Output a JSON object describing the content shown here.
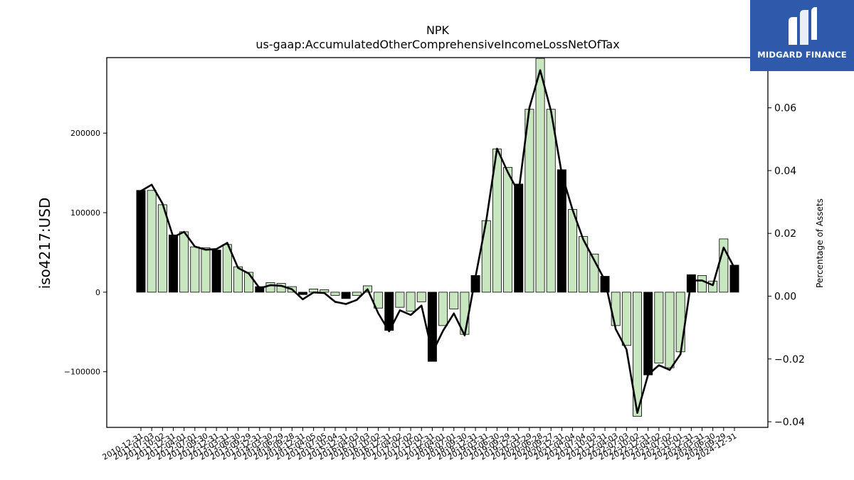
{
  "chart_data": {
    "type": "bar",
    "title": "NPK",
    "subtitle": "us-gaap:AccumulatedOtherComprehensiveIncomeLossNetOfTax",
    "ylabel": "iso4217:USD",
    "y2label": "Percentage of Assets",
    "ylim": [
      -170000,
      295000
    ],
    "y2lim": [
      -0.0418,
      0.076
    ],
    "yticks": [
      -100000,
      0,
      100000,
      200000
    ],
    "ytick_labels": [
      "−100000",
      "0",
      "100000",
      "200000"
    ],
    "y2ticks": [
      -0.04,
      -0.02,
      0.0,
      0.02,
      0.04,
      0.06
    ],
    "y2tick_labels": [
      "−0.04",
      "−0.02",
      "0.00",
      "0.02",
      "0.04",
      "0.06"
    ],
    "categories": [
      "2010-12-31",
      "2011-07-03",
      "2011-10-02",
      "2011-12-31",
      "2012-04-01",
      "2012-07-01",
      "2012-09-30",
      "2012-12-31",
      "2013-03-31",
      "2013-06-30",
      "2013-09-29",
      "2013-12-31",
      "2014-03-30",
      "2014-06-29",
      "2014-09-28",
      "2014-12-31",
      "2015-04-05",
      "2015-07-05",
      "2015-10-04",
      "2015-12-31",
      "2016-04-03",
      "2016-07-03",
      "2016-10-02",
      "2016-12-31",
      "2017-04-02",
      "2017-07-02",
      "2017-10-01",
      "2017-12-31",
      "2018-04-01",
      "2018-07-01",
      "2018-09-30",
      "2018-12-31",
      "2019-03-31",
      "2019-06-30",
      "2019-09-29",
      "2019-12-31",
      "2020-03-29",
      "2020-06-28",
      "2020-09-27",
      "2020-12-31",
      "2021-04-04",
      "2021-07-04",
      "2021-10-03",
      "2021-12-31",
      "2022-04-03",
      "2022-07-03",
      "2022-10-02",
      "2022-12-31",
      "2023-04-02",
      "2023-07-02",
      "2023-10-01",
      "2023-12-31",
      "2024-03-31",
      "2024-06-30",
      "2024-09-29",
      "2024-12-31"
    ],
    "values": [
      128000,
      128000,
      110000,
      72000,
      76000,
      57000,
      56000,
      53000,
      60000,
      32000,
      25000,
      7000,
      12000,
      11000,
      7000,
      -3000,
      4000,
      3000,
      -4000,
      -8000,
      -4000,
      8000,
      -20000,
      -48000,
      -19000,
      -24000,
      -12000,
      -87000,
      -42000,
      -21000,
      -53000,
      21000,
      90000,
      180000,
      157000,
      136000,
      230000,
      294000,
      230000,
      154000,
      104000,
      70000,
      48000,
      20000,
      -42000,
      -67000,
      -156000,
      -104000,
      -89000,
      -95000,
      -75000,
      22000,
      21000,
      14000,
      67000,
      34000
    ],
    "year_end": [
      true,
      false,
      false,
      true,
      false,
      false,
      false,
      true,
      false,
      false,
      false,
      true,
      false,
      false,
      false,
      true,
      false,
      false,
      false,
      true,
      false,
      false,
      false,
      true,
      false,
      false,
      false,
      true,
      false,
      false,
      false,
      true,
      false,
      false,
      false,
      true,
      false,
      false,
      false,
      true,
      false,
      false,
      false,
      true,
      false,
      false,
      false,
      true,
      false,
      false,
      false,
      true,
      false,
      false,
      false,
      true
    ],
    "pct_of_assets": [
      0.0335,
      0.0355,
      0.0295,
      0.0188,
      0.0205,
      0.0158,
      0.0148,
      0.015,
      0.017,
      0.009,
      0.0072,
      0.0025,
      0.0035,
      0.0033,
      0.0022,
      -0.001,
      0.0012,
      0.001,
      -0.0018,
      -0.0025,
      -0.0012,
      0.0022,
      -0.0055,
      -0.0112,
      -0.0045,
      -0.006,
      -0.003,
      -0.018,
      -0.011,
      -0.0055,
      -0.0125,
      0.006,
      0.024,
      0.047,
      0.0395,
      0.033,
      0.06,
      0.072,
      0.059,
      0.039,
      0.0275,
      0.018,
      0.0115,
      0.005,
      -0.0105,
      -0.017,
      -0.0372,
      -0.025,
      -0.022,
      -0.0235,
      -0.0185,
      0.005,
      0.005,
      0.0035,
      0.0155,
      0.009
    ],
    "colors": {
      "bar_year_end": "#000000",
      "bar_quarter": "#c8e6c0",
      "bar_edge": "#000000",
      "line": "#000000"
    },
    "grid": false
  },
  "logo": {
    "text": "MIDGARD FINANCE",
    "icon": "midgard-logo-icon",
    "bg": "#2f5aab"
  }
}
